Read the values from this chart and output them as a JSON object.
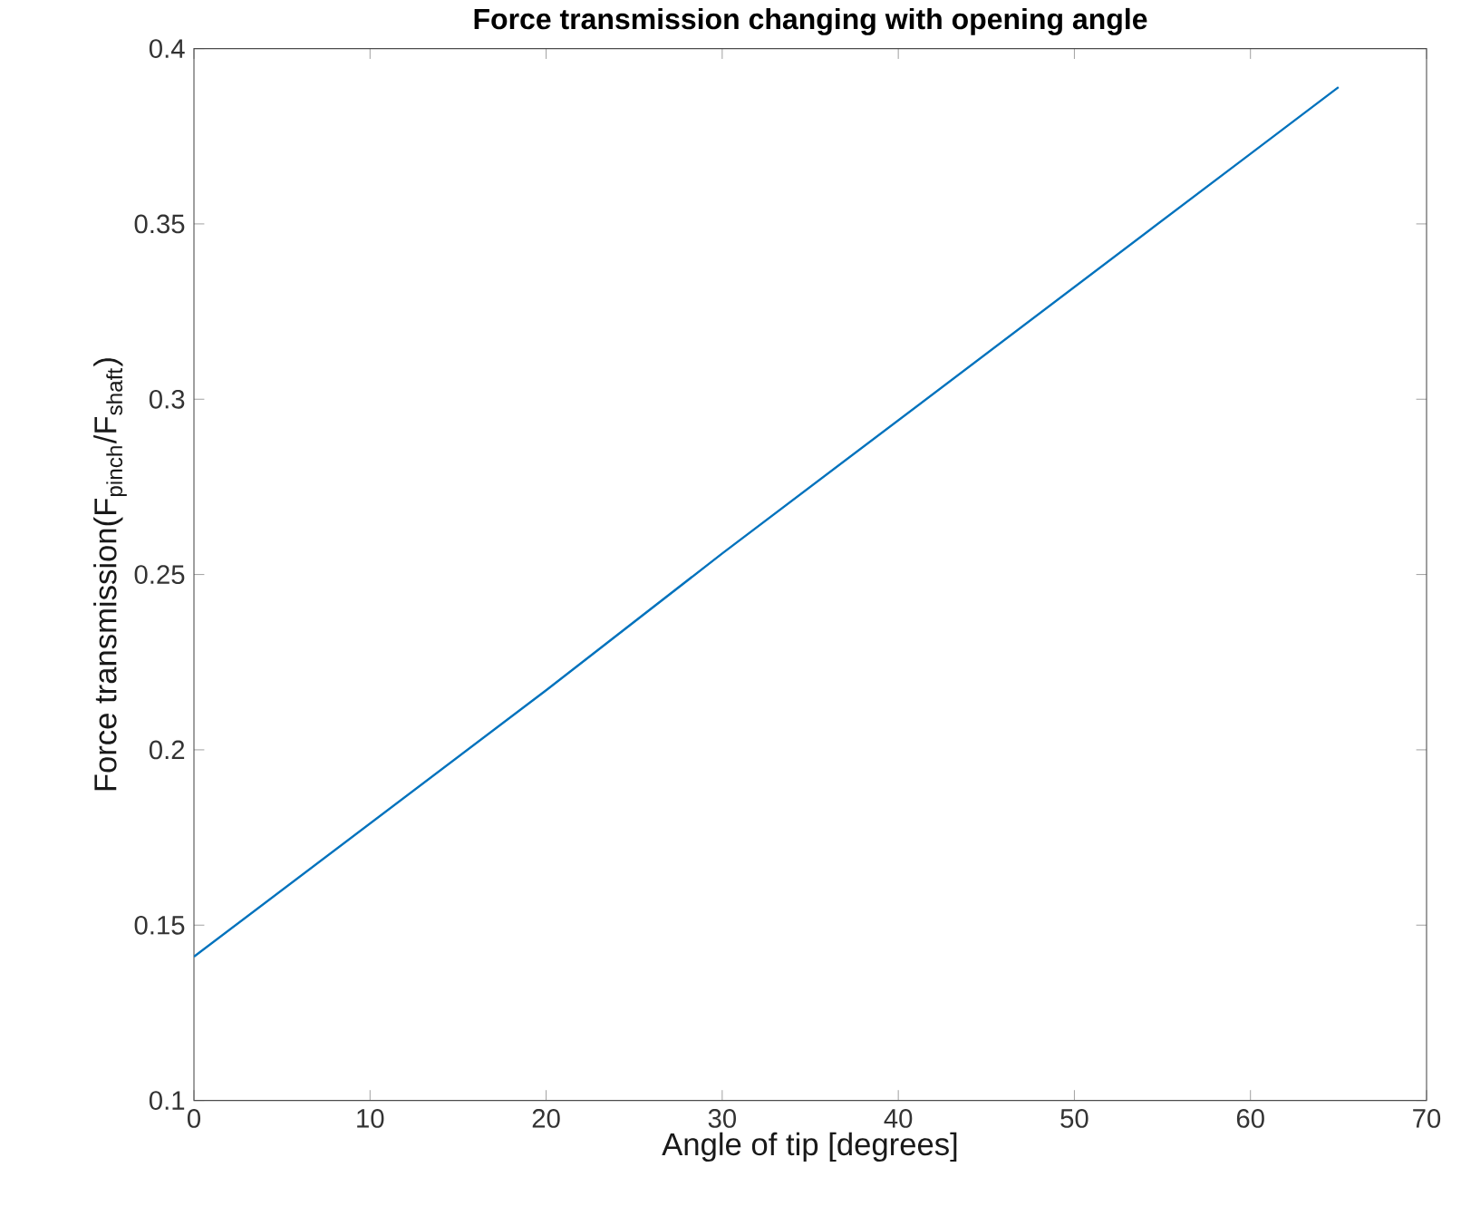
{
  "chart_data": {
    "type": "line",
    "title": "Force transmission changing with opening angle",
    "xlabel": "Angle of tip [degrees]",
    "ylabel": "Force transmission(F$_{pinch}$/F$_{shaft}$)",
    "x": [
      0,
      10,
      20,
      30,
      40,
      50,
      60,
      65
    ],
    "series": [
      {
        "color": "#0072bd",
        "values": [
          0.141,
          0.179,
          0.217,
          0.256,
          0.294,
          0.332,
          0.37,
          0.389
        ]
      }
    ],
    "xlim": [
      0,
      70
    ],
    "xticks": [
      0,
      10,
      20,
      30,
      40,
      50,
      60,
      70
    ],
    "ylim": [
      0.1,
      0.4
    ],
    "yticks": [
      0.1,
      0.15,
      0.2,
      0.25,
      0.3,
      0.35,
      0.4
    ],
    "marker": "none",
    "line_style": "solid"
  }
}
